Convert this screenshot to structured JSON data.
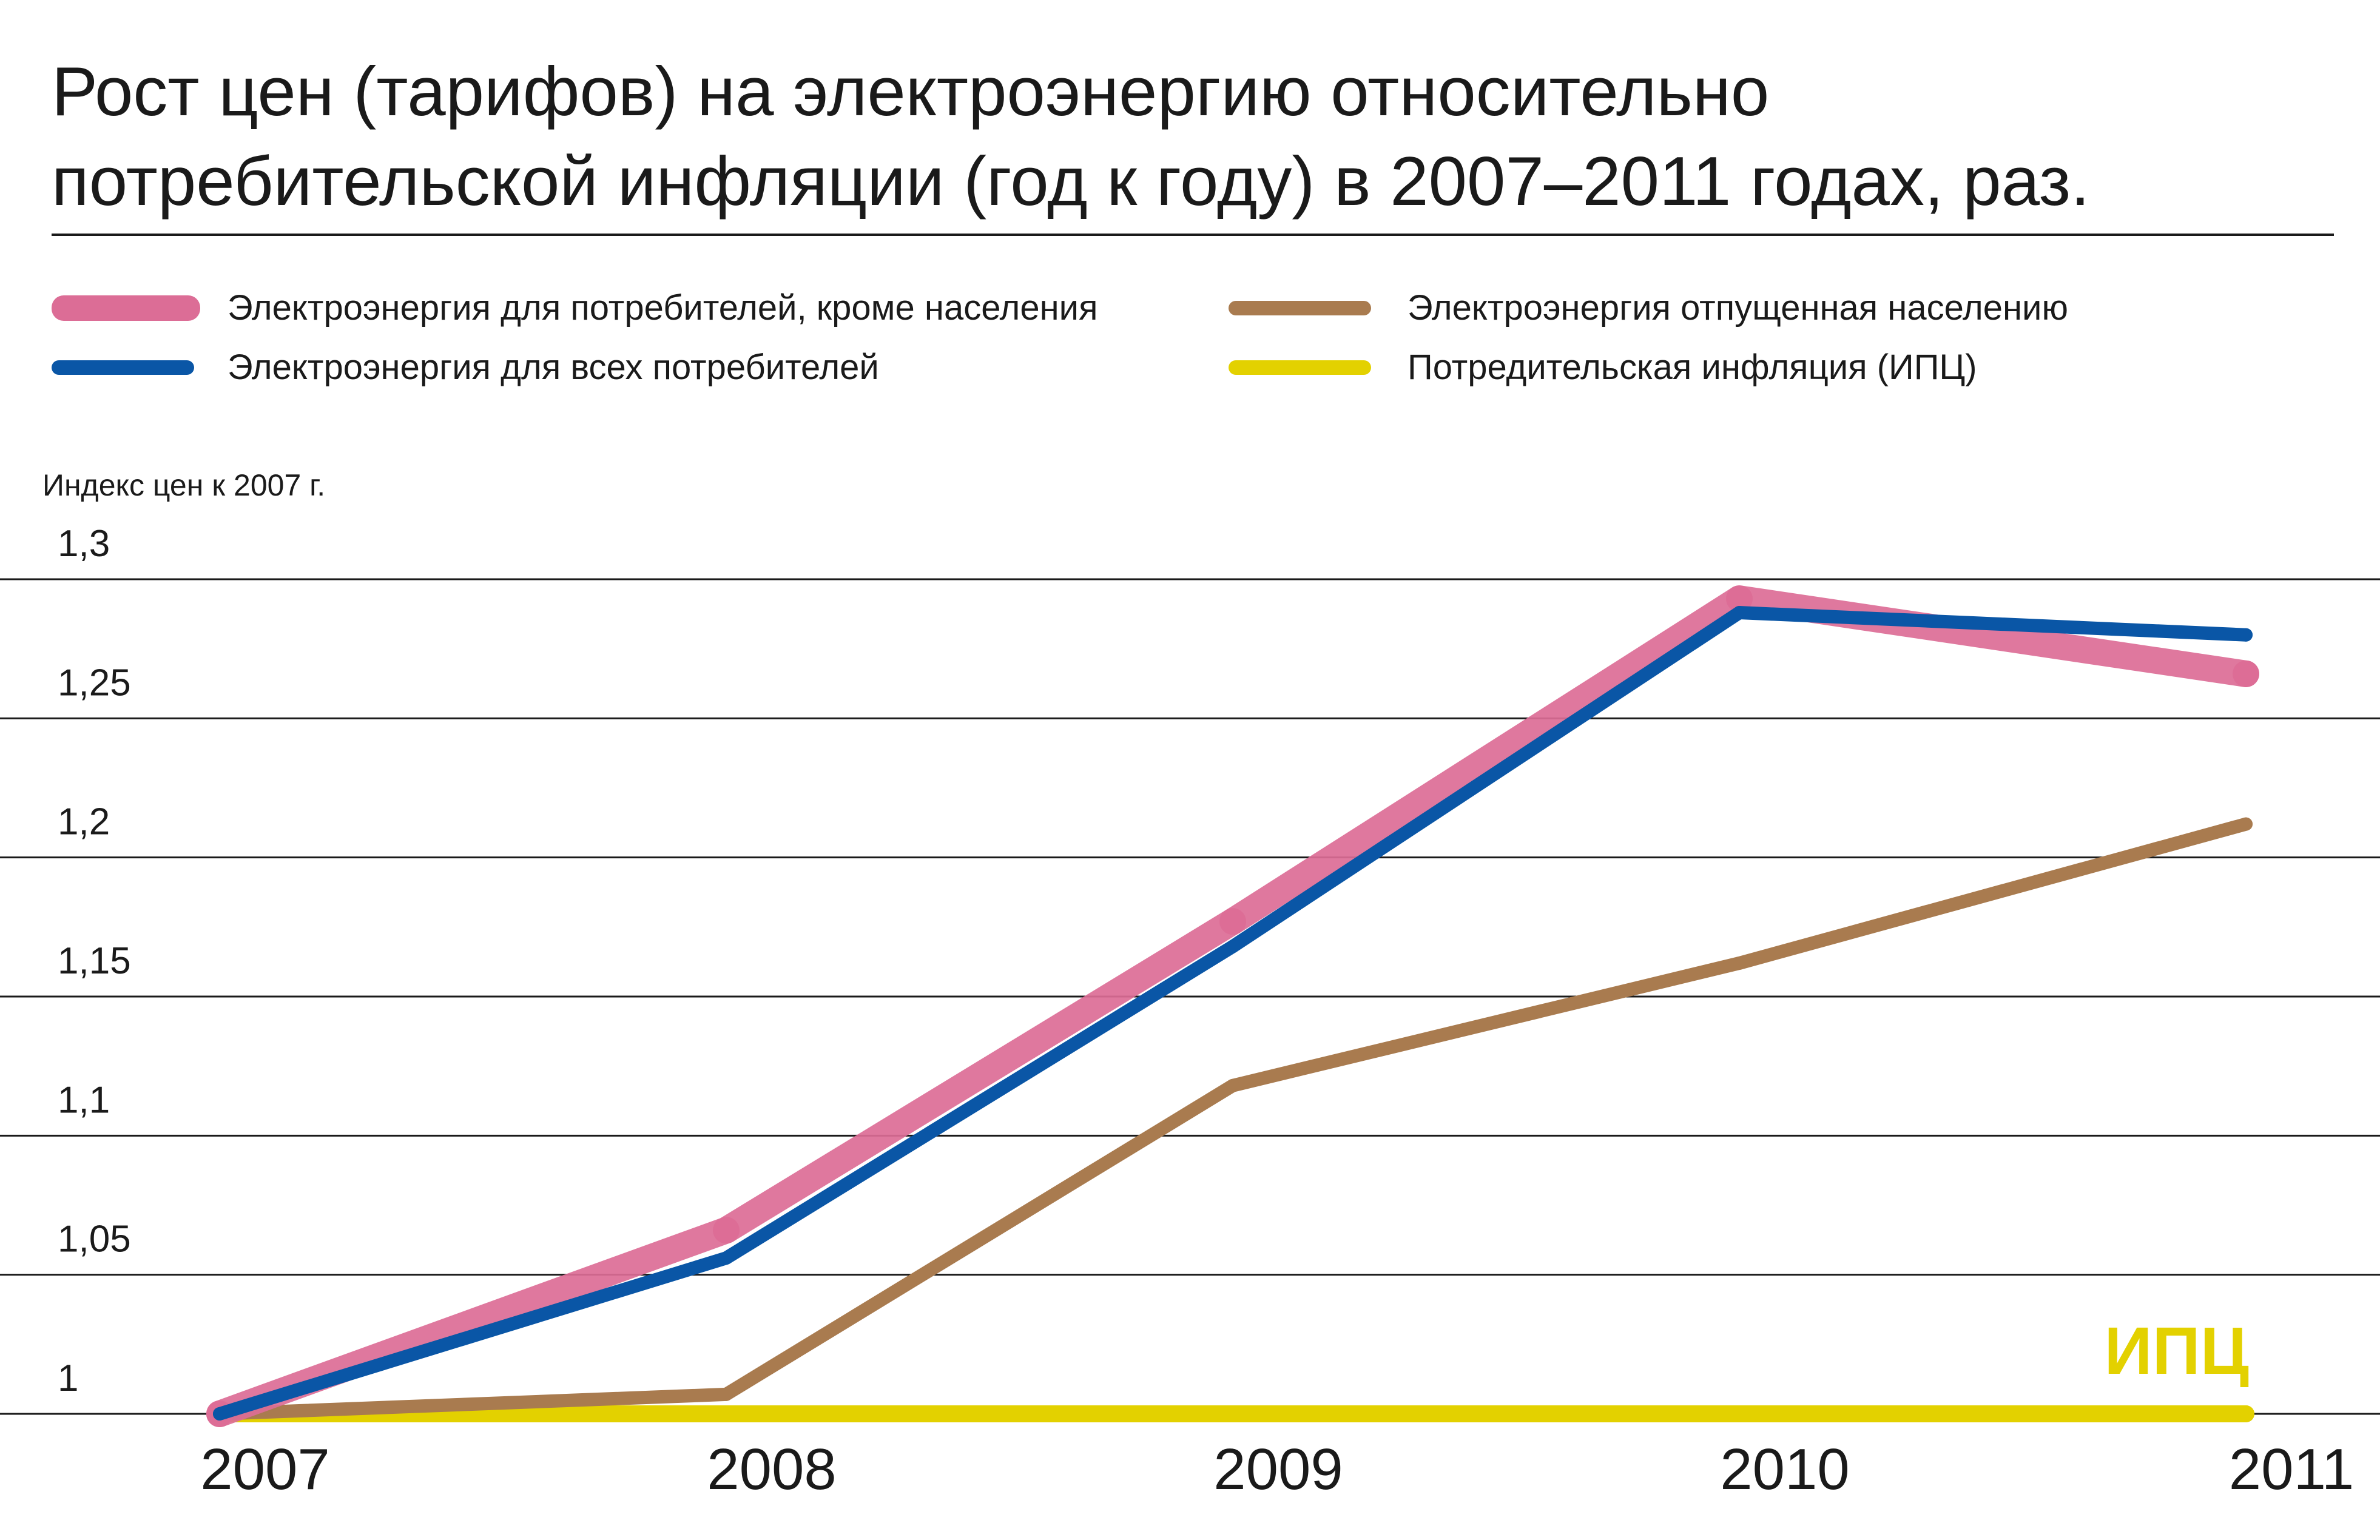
{
  "title": {
    "line1": "Рост цен (тарифов) на электроэнергию относительно",
    "line2": "потребительской инфляции (год к году) в 2007–2011 годах, раз."
  },
  "legend": [
    {
      "label": "Электроэнергия для потребителей, кроме населения",
      "color": "#dc6d96"
    },
    {
      "label": "Электроэнергия для всех потребителей",
      "color": "#0a56a6"
    },
    {
      "label": "Электроэнергия отпущенная населению",
      "color": "#a97b4f"
    },
    {
      "label": "Потредительская инфляция (ИПЦ)",
      "color": "#e3d100"
    }
  ],
  "chart_data": {
    "type": "line",
    "ylabel": "Индекс цен к 2007 г.",
    "xlabel": "",
    "categories": [
      "2007",
      "2008",
      "2009",
      "2010",
      "2011"
    ],
    "yticks": [
      "1",
      "1,05",
      "1,1",
      "1,15",
      "1,2",
      "1,25",
      "1,3"
    ],
    "ylim": [
      1.0,
      1.3
    ],
    "grid": true,
    "legend_position": "top",
    "series": [
      {
        "name": "Электроэнергия для потребителей, кроме населения",
        "color": "#dc6d96",
        "values": [
          1.0,
          1.066,
          1.177,
          1.293,
          1.266
        ]
      },
      {
        "name": "Электроэнергия для всех потребителей",
        "color": "#0a56a6",
        "values": [
          1.0,
          1.056,
          1.168,
          1.288,
          1.28
        ]
      },
      {
        "name": "Электроэнергия отпущенная населению",
        "color": "#a97b4f",
        "values": [
          1.0,
          1.007,
          1.118,
          1.162,
          1.212
        ]
      },
      {
        "name": "Потредительская инфляция (ИПЦ)",
        "color": "#e3d100",
        "values": [
          1.0,
          1.0,
          1.0,
          1.0,
          1.0
        ]
      }
    ],
    "annotations": [
      {
        "text": "ИПЦ",
        "color": "#e3d100"
      }
    ]
  }
}
